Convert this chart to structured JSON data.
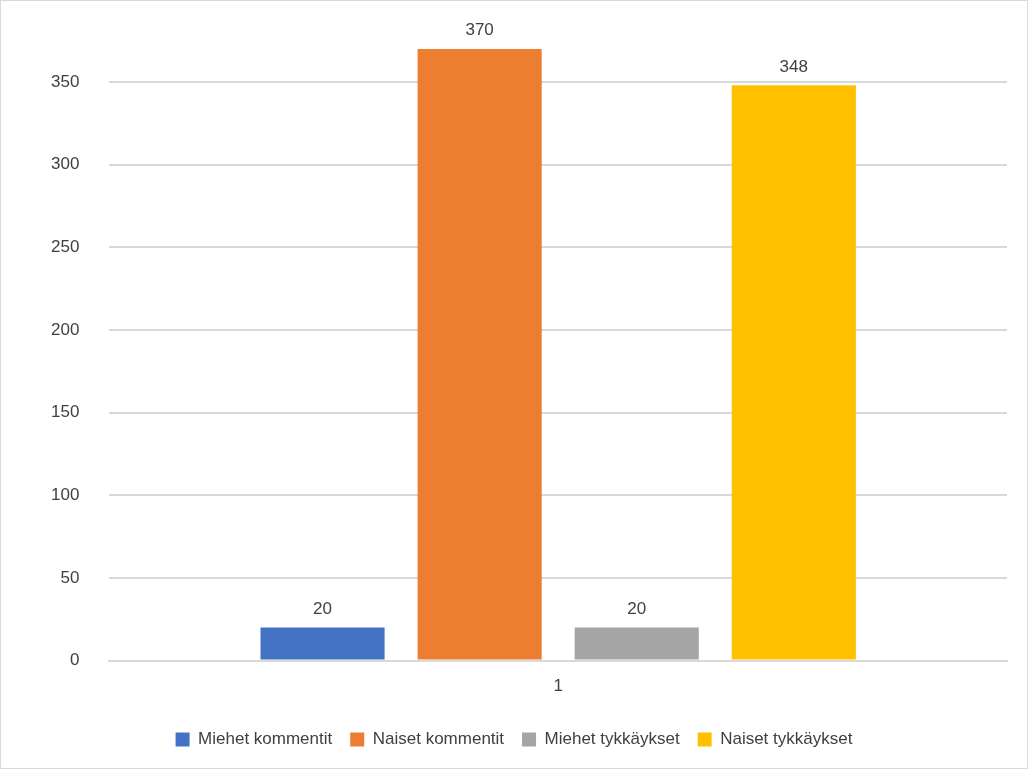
{
  "chart_data": {
    "type": "bar",
    "categories": [
      "1"
    ],
    "series": [
      {
        "name": "Miehet kommentit",
        "color": "#4472c4",
        "values": [
          20
        ]
      },
      {
        "name": "Naiset kommentit",
        "color": "#ed7d31",
        "values": [
          370
        ]
      },
      {
        "name": "Miehet tykkäykset",
        "color": "#a5a5a5",
        "values": [
          20
        ]
      },
      {
        "name": "Naiset tykkäykset",
        "color": "#ffc000",
        "values": [
          348
        ]
      }
    ],
    "ylim": [
      0,
      370
    ],
    "yticks": [
      0,
      50,
      100,
      150,
      200,
      250,
      300,
      350
    ],
    "grid": "y",
    "legend": "bottom",
    "data_labels": true
  }
}
